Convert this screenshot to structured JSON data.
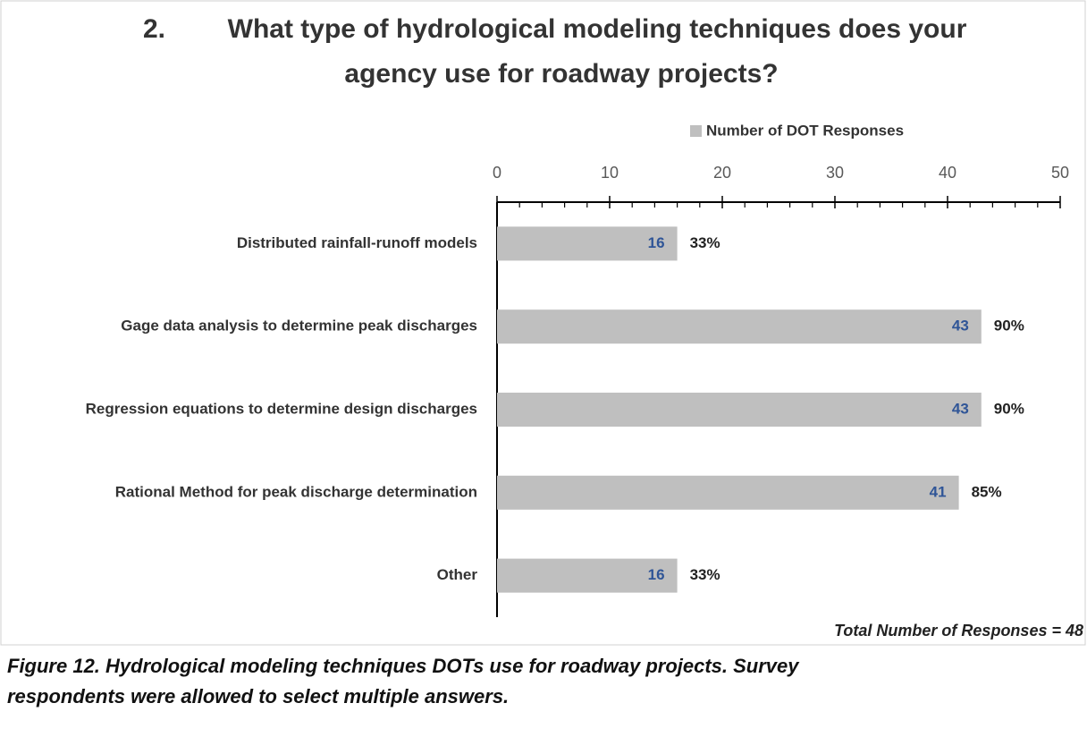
{
  "chart_data": {
    "type": "bar",
    "title": [
      "2.",
      "What type of hydrological modeling techniques does your",
      "agency use for roadway projects?"
    ],
    "categories": [
      "Distributed rainfall-runoff models",
      "Gage data analysis to determine peak discharges",
      "Regression equations to determine design discharges",
      "Rational Method for peak discharge determination",
      "Other"
    ],
    "series": [
      {
        "name": "Number of DOT Responses",
        "color": "#bfbfbf",
        "values": [
          16,
          43,
          43,
          41,
          16
        ]
      }
    ],
    "percent_labels": [
      "33%",
      "90%",
      "90%",
      "85%",
      "33%"
    ],
    "xlim": [
      0,
      50
    ],
    "xticks": [
      0,
      10,
      20,
      30,
      40,
      50
    ],
    "xticks_minor": [
      2,
      4,
      6,
      8,
      12,
      14,
      16,
      18,
      22,
      24,
      26,
      28,
      32,
      34,
      36,
      38,
      42,
      44,
      46,
      48
    ],
    "axis_position": "top",
    "legend": "top",
    "note": "Total Number of Responses  = 48",
    "caption": [
      "Figure 12.   Hydrological modeling techniques DOTs use for roadway projects. Survey",
      "respondents were allowed to select multiple answers."
    ]
  }
}
